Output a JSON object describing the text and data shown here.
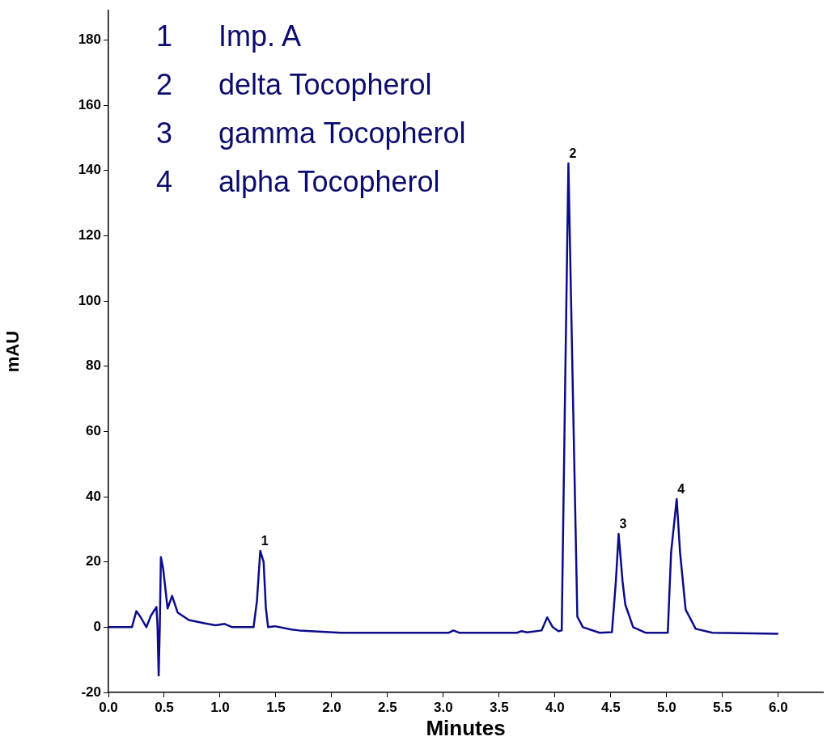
{
  "chart_data": {
    "type": "line",
    "xlabel": "Minutes",
    "ylabel": "mAU",
    "legend": false,
    "grid": false,
    "marker": "none",
    "line_style": "solid",
    "xlim": [
      0,
      6.4
    ],
    "ylim": [
      -20,
      189
    ],
    "xticks": [
      {
        "value": 0,
        "label": "0.0"
      },
      0.5,
      {
        "value": 1,
        "label": "1.0"
      },
      1.5,
      {
        "value": 2,
        "label": "2.0"
      },
      2.5,
      {
        "value": 3,
        "label": "3.0"
      },
      3.5,
      {
        "value": 4,
        "label": "4.0"
      },
      4.5,
      {
        "value": 5,
        "label": "5.0"
      },
      5.5,
      {
        "value": 6,
        "label": "6.0"
      }
    ],
    "yticks": [
      -20,
      0,
      20,
      40,
      60,
      80,
      100,
      120,
      140,
      160,
      180
    ],
    "annotations": [
      "1 Imp. A",
      "2 delta Tocopherol",
      "3 gamma Tocopherol",
      "4 alpha Tocopherol",
      {
        "text": "1",
        "x": 1.36,
        "y": 23.4
      },
      {
        "text": "2",
        "x": 4.12,
        "y": 142.2
      },
      {
        "text": "3",
        "x": 4.57,
        "y": 28.6
      },
      {
        "text": "4",
        "x": 5.09,
        "y": 39.3
      }
    ],
    "series": [
      {
        "color": "#0c0c8a",
        "x": [
          0,
          0.21,
          0.25,
          0.29,
          0.34,
          0.38,
          0.43,
          0.44,
          0.45,
          0.46,
          0.47,
          0.49,
          0.53,
          0.57,
          0.62,
          0.72,
          0.86,
          0.96,
          1.04,
          1.11,
          1.3,
          1.33,
          1.36,
          1.39,
          1.41,
          1.43,
          1.49,
          1.64,
          1.71,
          2.08,
          3.05,
          3.09,
          3.14,
          3.66,
          3.7,
          3.75,
          3.88,
          3.93,
          3.98,
          4.03,
          4.06,
          4.09,
          4.12,
          4.16,
          4.2,
          4.25,
          4.4,
          4.51,
          4.545,
          4.57,
          4.605,
          4.63,
          4.7,
          4.81,
          5.01,
          5.04,
          5.09,
          5.12,
          5.17,
          5.26,
          5.41,
          6.0
        ],
        "values": [
          0,
          0,
          4.9,
          3.0,
          0,
          3.5,
          6.2,
          0,
          -14.8,
          0,
          21.5,
          18,
          5.7,
          9.6,
          4.5,
          2.2,
          1.2,
          0.6,
          1.0,
          0,
          0,
          8,
          23.4,
          20,
          6,
          0,
          0.3,
          -0.7,
          -1.0,
          -1.7,
          -1.7,
          -1.0,
          -1.7,
          -1.7,
          -1.2,
          -1.6,
          -1.0,
          3.0,
          0,
          -1.2,
          -1.0,
          72,
          142.2,
          72,
          3.2,
          0,
          -1.7,
          -1.5,
          14,
          28.6,
          14,
          6.9,
          0,
          -1.7,
          -1.7,
          23,
          39.3,
          23,
          5.4,
          -0.5,
          -1.7,
          -2.0
        ]
      }
    ]
  }
}
